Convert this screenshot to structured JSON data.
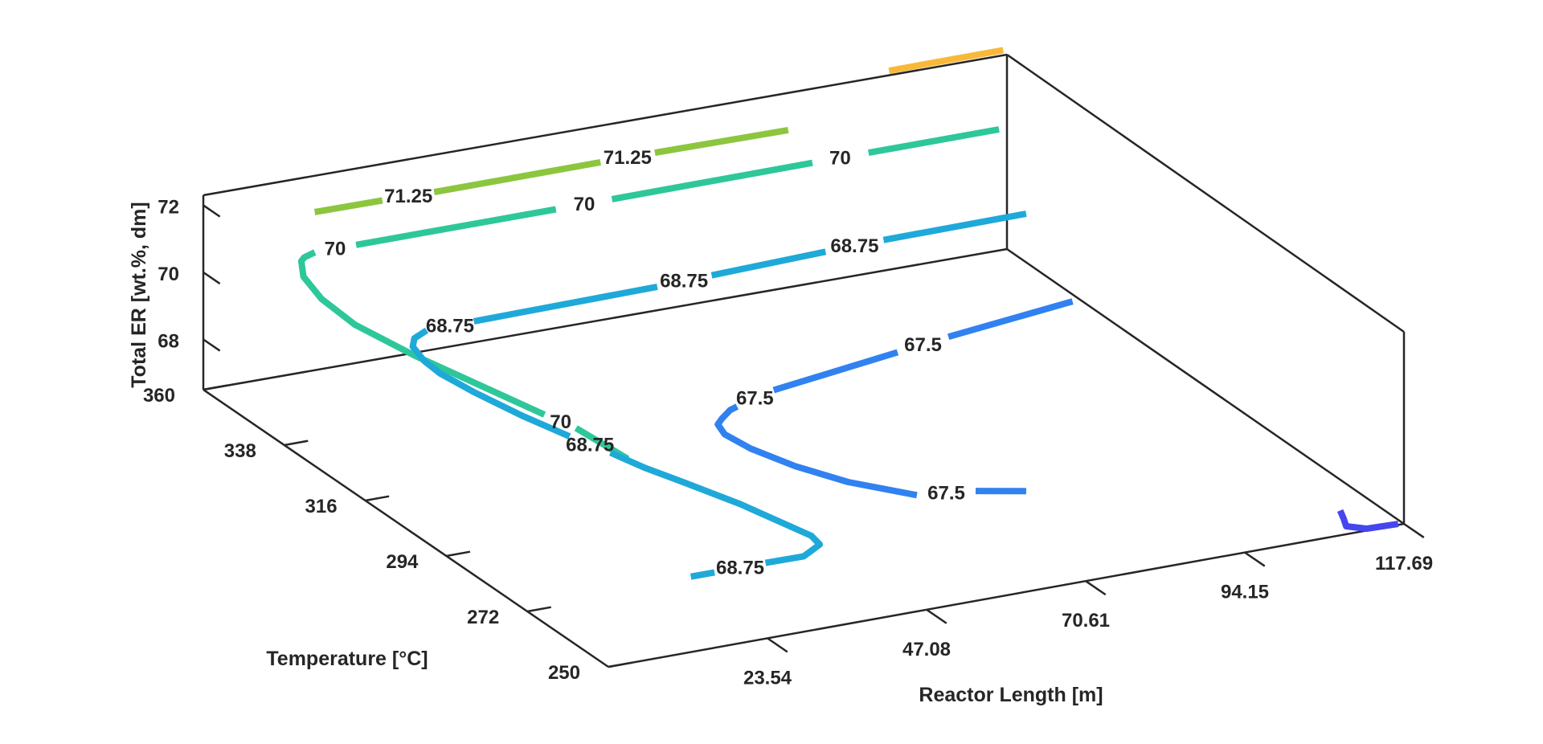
{
  "chart_data": {
    "type": "contour",
    "title": "",
    "xlabel": "Reactor Length [m]",
    "ylabel": "Temperature [°C]",
    "zlabel": "Total ER [wt.%, dm]",
    "x_ticks": [
      "23.54",
      "47.08",
      "70.61",
      "94.15",
      "117.69"
    ],
    "y_ticks": [
      "250",
      "272",
      "294",
      "316",
      "338",
      "360"
    ],
    "z_ticks": [
      "68",
      "70",
      "72"
    ],
    "xlim": [
      0,
      117.69
    ],
    "ylim": [
      250,
      360
    ],
    "zlim": [
      66.5,
      72.3
    ],
    "grid": false,
    "levels": [
      {
        "level": 72.5,
        "color": "#f8b93a",
        "segments": [
          [
            [
              117.4,
              358.3
            ],
            [
              100.5,
              358.3
            ]
          ]
        ],
        "labels": []
      },
      {
        "level": 71.25,
        "color": "#8cc63f",
        "segments": [
          [
            [
              16.2,
              359.5
            ],
            [
              26.1,
              359.3
            ]
          ],
          [
            [
              33.6,
              359.0
            ],
            [
              58.2,
              359.0
            ]
          ],
          [
            [
              66.2,
              358.9
            ],
            [
              85.7,
              358.5
            ]
          ]
        ],
        "labels": [
          {
            "text": "71.25",
            "x": 29.9,
            "y": 359.2
          },
          {
            "text": "71.25",
            "x": 62.2,
            "y": 359.0
          }
        ]
      },
      {
        "level": 70,
        "color": "#2ec79a",
        "segments": [
          [
            [
              17.8,
              277.4
            ],
            [
              17.0,
              290.0
            ]
          ],
          [
            [
              15.6,
              296.0
            ],
            [
              10.5,
              322.0
            ],
            [
              8.8,
              335.0
            ],
            [
              9.3,
              345.0
            ],
            [
              11.0,
              353.0
            ],
            [
              13.4,
              358.0
            ],
            [
              14.4,
              359.0
            ],
            [
              16.5,
              360.0
            ]
          ],
          [
            [
              22.6,
              360.0
            ],
            [
              52.1,
              359.9
            ]
          ],
          [
            [
              60.4,
              359.9
            ],
            [
              90.1,
              360.0
            ]
          ],
          [
            [
              98.4,
              360.0
            ],
            [
              117.7,
              360.0
            ]
          ]
        ],
        "labels": [
          {
            "text": "70",
            "x": 16.3,
            "y": 292.9
          },
          {
            "text": "70",
            "x": 19.5,
            "y": 360.0
          },
          {
            "text": "70",
            "x": 56.3,
            "y": 359.9
          },
          {
            "text": "70",
            "x": 94.2,
            "y": 360.0
          }
        ]
      },
      {
        "level": 68.75,
        "color": "#1fa9d9",
        "segments": [
          [
            [
              12.2,
              250.0
            ],
            [
              15.7,
              250.0
            ]
          ],
          [
            [
              23.3,
              250.1
            ],
            [
              28.9,
              250.0
            ],
            [
              32.8,
              252.8
            ],
            [
              33.3,
              256.0
            ],
            [
              30.4,
              270.0
            ],
            [
              27.5,
              280.0
            ],
            [
              25.4,
              287.0
            ],
            [
              24.0,
              293.5
            ]
          ],
          [
            [
              22.0,
              300.9
            ],
            [
              20.0,
              310.0
            ],
            [
              18.4,
              320.0
            ],
            [
              17.6,
              328.0
            ],
            [
              17.9,
              333.0
            ],
            [
              19.0,
              338.0
            ],
            [
              20.6,
              340.5
            ],
            [
              23.4,
              342.3
            ]
          ],
          [
            [
              30.5,
              342.5
            ],
            [
              57.9,
              343.0
            ]
          ],
          [
            [
              66.2,
              343.5
            ],
            [
              83.6,
              344.5
            ]
          ],
          [
            [
              92.4,
              344.9
            ],
            [
              113.6,
              345.1
            ]
          ]
        ],
        "labels": [
          {
            "text": "68.75",
            "x": 19.5,
            "y": 250.0
          },
          {
            "text": "68.75",
            "x": 23.0,
            "y": 297.2
          },
          {
            "text": "68.75",
            "x": 26.9,
            "y": 342.4
          },
          {
            "text": "68.75",
            "x": 62.0,
            "y": 343.3
          },
          {
            "text": "68.75",
            "x": 88.0,
            "y": 344.7
          }
        ]
      },
      {
        "level": 67.5,
        "color": "#3182f0",
        "segments": [
          [
            [
              73.3,
              271.1
            ],
            [
              67.4,
              274.0
            ]
          ],
          [
            [
              59.8,
              276.0
            ],
            [
              54.0,
              284.0
            ],
            [
              50.5,
              292.0
            ],
            [
              48.3,
              300.0
            ],
            [
              47.7,
              306.0
            ],
            [
              48.6,
              309.5
            ],
            [
              50.0,
              311.0
            ],
            [
              52.5,
              313.3
            ],
            [
              53.9,
              314.0
            ]
          ],
          [
            [
              61.0,
              317.1
            ],
            [
              82.0,
              322.0
            ]
          ],
          [
            [
              90.6,
              324.0
            ],
            [
              111.2,
              328.1
            ]
          ]
        ],
        "labels": [
          {
            "text": "67.5",
            "x": 63.6,
            "y": 275.0
          },
          {
            "text": "67.5",
            "x": 57.4,
            "y": 315.6
          },
          {
            "text": "67.5",
            "x": 86.3,
            "y": 323.0
          }
        ]
      },
      {
        "level": 66.5,
        "color": "#4646ee",
        "segments": [
          [
            [
              117.0,
              250.3
            ],
            [
              112.5,
              250.6
            ],
            [
              110.5,
              252.5
            ],
            [
              111.5,
              255.0
            ],
            [
              112.5,
              257.8
            ]
          ]
        ],
        "labels": []
      }
    ]
  }
}
